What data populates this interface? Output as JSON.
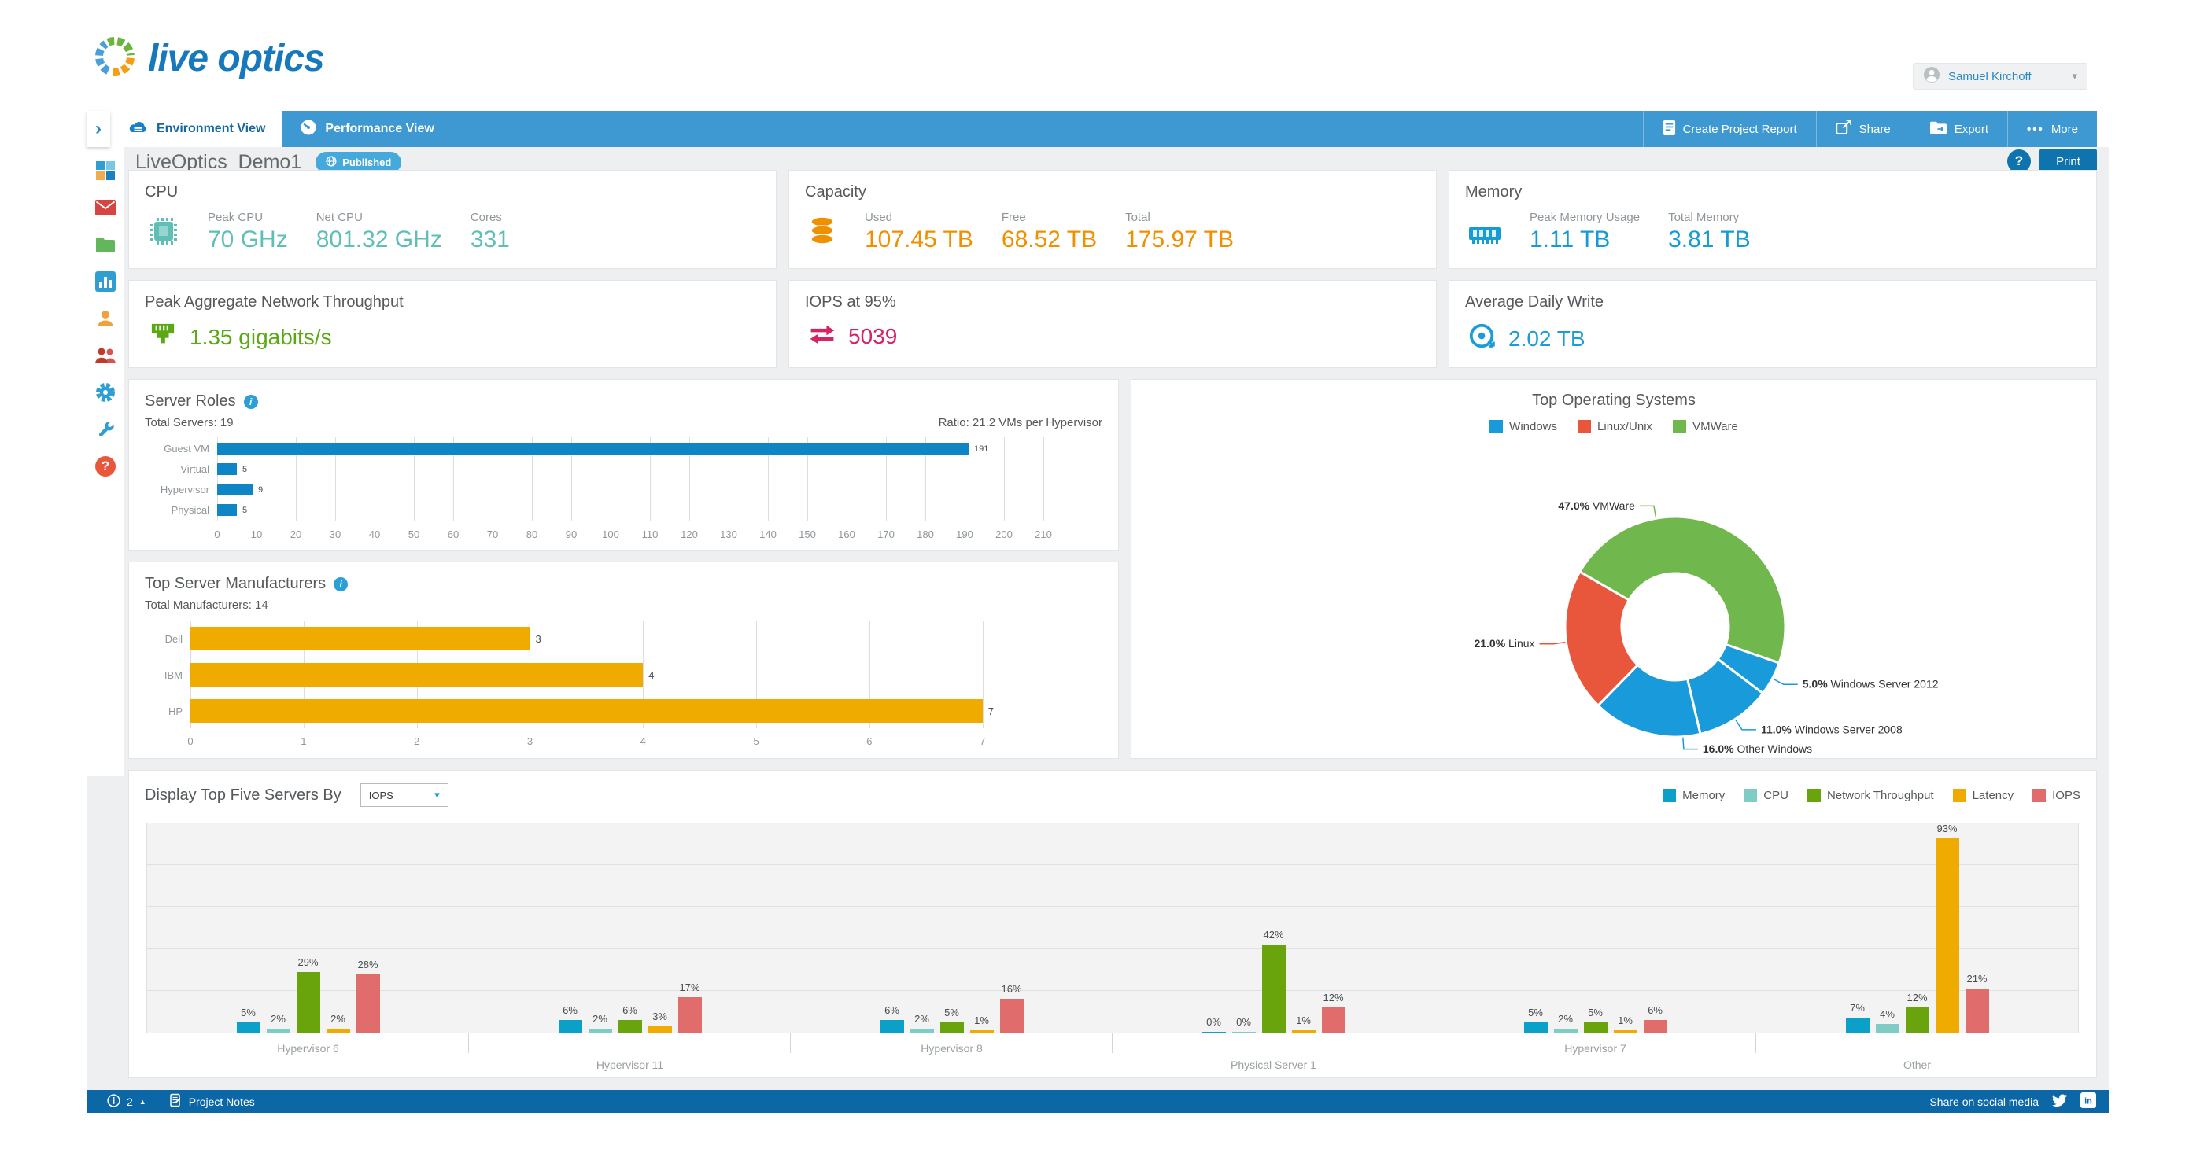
{
  "header": {
    "logo_text": "live optics",
    "user_name": "Samuel Kirchoff"
  },
  "glyphs": {
    "collapse": "›",
    "caret_down": "▾",
    "caret_up": "▲",
    "ellipsis": "•••",
    "question": "?",
    "info": "i"
  },
  "tabbar": {
    "tabs": [
      {
        "label": "Environment View",
        "icon": "cloud-icon",
        "active": true
      },
      {
        "label": "Performance View",
        "icon": "gauge-icon",
        "active": false
      }
    ],
    "actions": [
      {
        "label": "Create Project Report",
        "icon": "report-icon"
      },
      {
        "label": "Share",
        "icon": "share-icon"
      },
      {
        "label": "Export",
        "icon": "export-folder-icon"
      },
      {
        "label": "More",
        "icon": "ellipsis-icon"
      }
    ]
  },
  "toolbar": {
    "project_name": "LiveOptics_Demo1",
    "status_badge": "Published",
    "print_label": "Print"
  },
  "sidebar": {
    "items": [
      "dashboard-grid-icon",
      "mail-icon",
      "folder-icon",
      "chart-icon",
      "user-icon",
      "users-icon",
      "gear-icon",
      "wrench-icon",
      "help-icon"
    ]
  },
  "kpis": {
    "cpu": {
      "title": "CPU",
      "color": "#5fbfb7",
      "icon": "cpu-chip-icon",
      "metrics": [
        {
          "label": "Peak CPU",
          "value": "70 GHz"
        },
        {
          "label": "Net CPU",
          "value": "801.32 GHz"
        },
        {
          "label": "Cores",
          "value": "331"
        }
      ]
    },
    "capacity": {
      "title": "Capacity",
      "color": "#ef9000",
      "icon": "database-icon",
      "metrics": [
        {
          "label": "Used",
          "value": "107.45 TB"
        },
        {
          "label": "Free",
          "value": "68.52 TB"
        },
        {
          "label": "Total",
          "value": "175.97 TB"
        }
      ]
    },
    "memory": {
      "title": "Memory",
      "color": "#169bd5",
      "icon": "ram-icon",
      "metrics": [
        {
          "label": "Peak Memory Usage",
          "value": "1.11 TB"
        },
        {
          "label": "Total Memory",
          "value": "3.81 TB"
        }
      ]
    },
    "network": {
      "title": "Peak Aggregate Network Throughput",
      "value": "1.35 gigabits/s",
      "color": "#5aa814",
      "icon": "ethernet-icon"
    },
    "iops": {
      "title": "IOPS at 95%",
      "value": "5039",
      "color": "#d62368",
      "icon": "arrows-exchange-icon"
    },
    "daily_write": {
      "title": "Average Daily Write",
      "value": "2.02 TB",
      "color": "#1b9cd8",
      "icon": "disc-write-icon"
    }
  },
  "chart_data": [
    {
      "id": "server_roles",
      "type": "bar",
      "orientation": "horizontal",
      "title": "Server Roles",
      "subtitle_left": "Total Servers: 19",
      "subtitle_right": "Ratio: 21.2 VMs per Hypervisor",
      "categories": [
        "Guest VM",
        "Virtual",
        "Hypervisor",
        "Physical"
      ],
      "values": [
        191,
        5,
        9,
        5
      ],
      "bar_color": "#0e85c4",
      "xlim": [
        0,
        215
      ],
      "grid": true,
      "x_ticks": [
        0,
        10,
        20,
        30,
        40,
        50,
        60,
        70,
        80,
        90,
        100,
        110,
        120,
        130,
        140,
        150,
        160,
        170,
        180,
        190,
        200,
        210
      ]
    },
    {
      "id": "manufacturers",
      "type": "bar",
      "orientation": "horizontal",
      "title": "Top Server Manufacturers",
      "subtitle_left": "Total Manufacturers: 14",
      "categories": [
        "Dell",
        "IBM",
        "HP"
      ],
      "values": [
        3,
        4,
        7
      ],
      "bar_color": "#f0ab00",
      "xlim": [
        0,
        7.6
      ],
      "grid": true,
      "x_ticks": [
        0,
        1,
        2,
        3,
        4,
        5,
        6,
        7
      ]
    },
    {
      "id": "top_os",
      "type": "pie",
      "donut": true,
      "title": "Top Operating Systems",
      "legend_position": "top",
      "legend": [
        {
          "label": "Windows",
          "color": "#199bdb"
        },
        {
          "label": "Linux/Unix",
          "color": "#e8573c"
        },
        {
          "label": "VMWare",
          "color": "#70b84d"
        }
      ],
      "start_angle_deg": 300,
      "slices": [
        {
          "label": "VMWare",
          "pct": 47.0,
          "color": "#70b84d",
          "label_angle": 350
        },
        {
          "label": "Windows Server 2012",
          "pct": 5.0,
          "color": "#199bdb",
          "label_angle": 118
        },
        {
          "label": "Windows Server 2008",
          "pct": 11.0,
          "color": "#199bdb",
          "label_angle": 147
        },
        {
          "label": "Other Windows",
          "pct": 16.0,
          "color": "#199bdb",
          "label_angle": 176
        },
        {
          "label": "Linux",
          "pct": 21.0,
          "color": "#e8573c",
          "label_angle": 262
        }
      ]
    },
    {
      "id": "top_servers",
      "type": "bar",
      "orientation": "vertical",
      "grouped": true,
      "control_label": "Display Top Five Servers By",
      "selected_option": "IOPS",
      "ylim": [
        0,
        100
      ],
      "grid_step_pct": 20,
      "value_suffix": "%",
      "categories": [
        "Hypervisor 6",
        "Hypervisor 11",
        "Hypervisor 8",
        "Physical Server 1",
        "Hypervisor 7",
        "Other"
      ],
      "series": [
        {
          "name": "Memory",
          "color": "#0ba0c8",
          "values": [
            5,
            6,
            6,
            0,
            5,
            7
          ]
        },
        {
          "name": "CPU",
          "color": "#7fccc4",
          "values": [
            2,
            2,
            2,
            0,
            2,
            4
          ]
        },
        {
          "name": "Network Throughput",
          "color": "#6aa40c",
          "values": [
            29,
            6,
            5,
            42,
            5,
            12
          ]
        },
        {
          "name": "Latency",
          "color": "#f0ab00",
          "values": [
            2,
            3,
            1,
            1,
            1,
            93
          ]
        },
        {
          "name": "IOPS",
          "color": "#e06c6c",
          "values": [
            28,
            17,
            16,
            12,
            6,
            21
          ]
        }
      ]
    }
  ],
  "footer": {
    "info_count": "2",
    "notes_label": "Project Notes",
    "share_label": "Share on social media"
  }
}
